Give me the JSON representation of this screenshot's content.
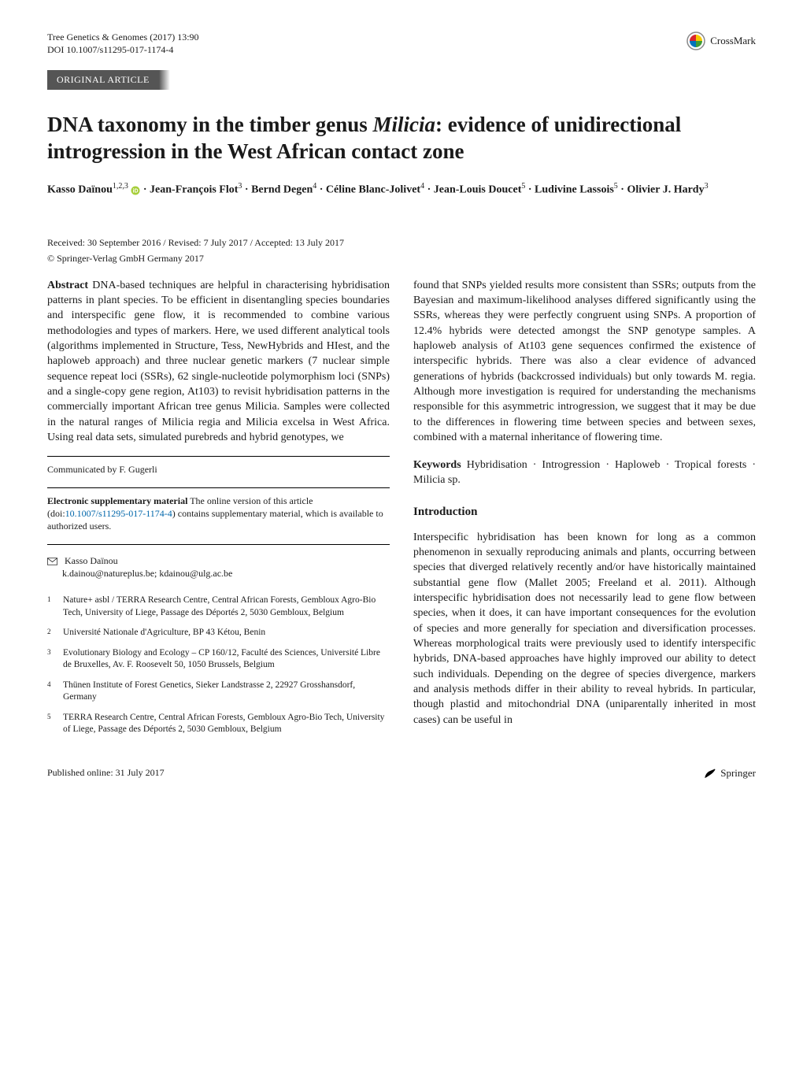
{
  "header": {
    "journal": "Tree Genetics & Genomes  (2017) 13:90",
    "doi": "DOI 10.1007/s11295-017-1174-4",
    "crossmark_label": "CrossMark"
  },
  "article_type": "ORIGINAL ARTICLE",
  "title_pre": "DNA taxonomy in the timber genus ",
  "title_genus": "Milicia",
  "title_post": ": evidence of unidirectional introgression in the West African contact zone",
  "authors_html": "Kasso Daïnou<sup>1,2,3</sup> <svg class='orcid-icon' viewBox='0 0 24 24'><circle cx='12' cy='12' r='11' fill='#a6ce39'/><text x='12' y='17' font-size='14' text-anchor='middle' fill='#fff' font-family='Arial'>iD</text></svg> · Jean-François Flot<sup>3</sup> · Bernd Degen<sup>4</sup> · Céline Blanc-Jolivet<sup>4</sup> · Jean-Louis Doucet<sup>5</sup> · Ludivine Lassois<sup>5</sup> · Olivier J. Hardy<sup>3</sup>",
  "dates": "Received: 30 September 2016 / Revised: 7 July 2017 / Accepted: 13 July 2017",
  "copyright": "© Springer-Verlag GmbH Germany 2017",
  "abstract": {
    "label": "Abstract",
    "left": "DNA-based techniques are helpful in characterising hybridisation patterns in plant species. To be efficient in disentangling species boundaries and interspecific gene flow, it is recommended to combine various methodologies and types of markers. Here, we used different analytical tools (algorithms implemented in Structure, Tess, NewHybrids and HIest, and the haploweb approach) and three nuclear genetic markers (7 nuclear simple sequence repeat loci (SSRs), 62 single-nucleotide polymorphism loci (SNPs) and a single-copy gene region, At103) to revisit hybridisation patterns in the commercially important African tree genus Milicia. Samples were collected in the natural ranges of Milicia regia and Milicia excelsa in West Africa. Using real data sets, simulated purebreds and hybrid genotypes, we",
    "right": "found that SNPs yielded results more consistent than SSRs; outputs from the Bayesian and maximum-likelihood analyses differed significantly using the SSRs, whereas they were perfectly congruent using SNPs. A proportion of 12.4% hybrids were detected amongst the SNP genotype samples. A haploweb analysis of At103 gene sequences confirmed the existence of interspecific hybrids. There was also a clear evidence of advanced generations of hybrids (backcrossed individuals) but only towards M. regia. Although more investigation is required for understanding the mechanisms responsible for this asymmetric introgression, we suggest that it may be due to the differences in flowering time between species and between sexes, combined with a maternal inheritance of flowering time."
  },
  "keywords": {
    "label": "Keywords",
    "text": "Hybridisation · Introgression · Haploweb · Tropical forests · Milicia sp."
  },
  "communicated": "Communicated by F. Gugerli",
  "supplementary": {
    "label": "Electronic supplementary material",
    "pre": "The online version of this article (doi:",
    "doi": "10.1007/s11295-017-1174-4",
    "post": ") contains supplementary material, which is available to authorized users."
  },
  "corresponding": {
    "name": "Kasso Daïnou",
    "emails": "k.dainou@natureplus.be; kdainou@ulg.ac.be"
  },
  "affiliations": [
    {
      "n": "1",
      "text": "Nature+ asbl / TERRA Research Centre, Central African Forests, Gembloux Agro-Bio Tech, University of Liege, Passage des Déportés 2, 5030 Gembloux, Belgium"
    },
    {
      "n": "2",
      "text": "Université Nationale d'Agriculture, BP 43 Kétou, Benin"
    },
    {
      "n": "3",
      "text": "Evolutionary Biology and Ecology – CP 160/12, Faculté des Sciences, Université Libre de Bruxelles, Av. F. Roosevelt 50, 1050 Brussels, Belgium"
    },
    {
      "n": "4",
      "text": "Thünen Institute of Forest Genetics, Sieker Landstrasse 2, 22927 Grosshansdorf, Germany"
    },
    {
      "n": "5",
      "text": "TERRA Research Centre, Central African Forests, Gembloux Agro-Bio Tech, University of Liege, Passage des Déportés 2, 5030 Gembloux, Belgium"
    }
  ],
  "intro": {
    "heading": "Introduction",
    "body": "Interspecific hybridisation has been known for long as a common phenomenon in sexually reproducing animals and plants, occurring between species that diverged relatively recently and/or have historically maintained substantial gene flow (Mallet 2005; Freeland et al. 2011). Although interspecific hybridisation does not necessarily lead to gene flow between species, when it does, it can have important consequences for the evolution of species and more generally for speciation and diversification processes. Whereas morphological traits were previously used to identify interspecific hybrids, DNA-based approaches have highly improved our ability to detect such individuals. Depending on the degree of species divergence, markers and analysis methods differ in their ability to reveal hybrids. In particular, though plastid and mitochondrial DNA (uniparentally inherited in most cases) can be useful in"
  },
  "footer": {
    "published": "Published online: 31 July 2017",
    "publisher": "Springer"
  },
  "colors": {
    "link": "#0066aa",
    "bar_bg": "#555555",
    "orcid": "#a6ce39"
  }
}
